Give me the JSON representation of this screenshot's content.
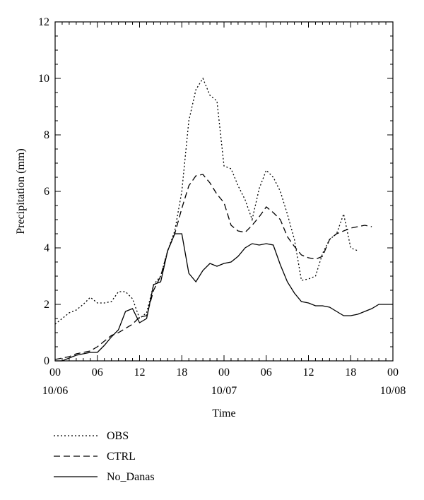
{
  "chart_data": {
    "type": "line",
    "title": "",
    "xlabel": "Time",
    "ylabel": "Precipitation (mm)",
    "xlim": [
      0,
      48
    ],
    "ylim": [
      0,
      12
    ],
    "grid": false,
    "legend_position": "bottom-left",
    "x_ticks": [
      0,
      6,
      12,
      18,
      24,
      30,
      36,
      42,
      48
    ],
    "x_tick_labels": [
      "00",
      "06",
      "12",
      "18",
      "00",
      "06",
      "12",
      "18",
      "00"
    ],
    "date_labels": [
      {
        "x": 0,
        "label": "10/06"
      },
      {
        "x": 24,
        "label": "10/07"
      },
      {
        "x": 48,
        "label": "10/08"
      }
    ],
    "y_ticks": [
      0,
      2,
      4,
      6,
      8,
      10,
      12
    ],
    "y_tick_labels": [
      "0",
      "2",
      "4",
      "6",
      "8",
      "10",
      "12"
    ],
    "series": [
      {
        "name": "OBS",
        "style": "dotted",
        "x": [
          0,
          1,
          2,
          3,
          4,
          5,
          6,
          7,
          8,
          9,
          10,
          11,
          12,
          13,
          14,
          15,
          16,
          17,
          18,
          19,
          20,
          21,
          22,
          23,
          24,
          25,
          26,
          27,
          28,
          29,
          30,
          31,
          32,
          33,
          34,
          35,
          36,
          37,
          38,
          39,
          40,
          41,
          42,
          43,
          44,
          45,
          46,
          47,
          48
        ],
        "y": [
          1.3,
          1.5,
          1.7,
          1.8,
          2.0,
          2.25,
          2.05,
          2.05,
          2.1,
          2.45,
          2.45,
          2.2,
          1.5,
          1.7,
          2.7,
          3.0,
          3.9,
          4.6,
          6.0,
          8.5,
          9.6,
          10.0,
          9.4,
          9.2,
          6.9,
          6.8,
          6.2,
          5.7,
          5.0,
          6.1,
          6.75,
          6.5,
          6.0,
          5.2,
          4.3,
          2.85,
          2.9,
          3.0,
          3.8,
          4.3,
          4.5,
          5.2,
          4.0,
          3.9,
          null,
          null,
          null,
          null,
          null
        ]
      },
      {
        "name": "CTRL",
        "style": "dashed",
        "x": [
          0,
          1,
          2,
          3,
          4,
          5,
          6,
          7,
          8,
          9,
          10,
          11,
          12,
          13,
          14,
          15,
          16,
          17,
          18,
          19,
          20,
          21,
          22,
          23,
          24,
          25,
          26,
          27,
          28,
          29,
          30,
          31,
          32,
          33,
          34,
          35,
          36,
          37,
          38,
          39,
          40,
          41,
          42,
          43,
          44,
          45,
          46,
          47,
          48
        ],
        "y": [
          0.05,
          0.1,
          0.15,
          0.25,
          0.3,
          0.35,
          0.5,
          0.7,
          0.9,
          1.0,
          1.15,
          1.3,
          1.55,
          1.6,
          2.5,
          3.0,
          3.9,
          4.5,
          5.4,
          6.2,
          6.55,
          6.6,
          6.3,
          5.9,
          5.6,
          4.8,
          4.6,
          4.55,
          4.8,
          5.1,
          5.45,
          5.25,
          5.0,
          4.4,
          4.05,
          3.75,
          3.65,
          3.6,
          3.7,
          4.3,
          4.5,
          4.6,
          4.7,
          4.75,
          4.8,
          4.75,
          null,
          null,
          null
        ]
      },
      {
        "name": "No_Danas",
        "style": "solid",
        "x": [
          0,
          1,
          2,
          3,
          4,
          5,
          6,
          7,
          8,
          9,
          10,
          11,
          12,
          13,
          14,
          15,
          16,
          17,
          18,
          19,
          20,
          21,
          22,
          23,
          24,
          25,
          26,
          27,
          28,
          29,
          30,
          31,
          32,
          33,
          34,
          35,
          36,
          37,
          38,
          39,
          40,
          41,
          42,
          43,
          44,
          45,
          46,
          47,
          48
        ],
        "y": [
          0.0,
          0.0,
          0.1,
          0.2,
          0.25,
          0.3,
          0.3,
          0.55,
          0.85,
          1.1,
          1.75,
          1.85,
          1.35,
          1.5,
          2.7,
          2.8,
          3.9,
          4.5,
          4.5,
          3.1,
          2.8,
          3.2,
          3.45,
          3.35,
          3.45,
          3.5,
          3.7,
          4.0,
          4.15,
          4.1,
          4.15,
          4.1,
          3.4,
          2.8,
          2.4,
          2.1,
          2.05,
          1.95,
          1.95,
          1.9,
          1.75,
          1.6,
          1.6,
          1.65,
          1.75,
          1.85,
          2.0,
          2.0,
          2.0
        ]
      }
    ]
  }
}
